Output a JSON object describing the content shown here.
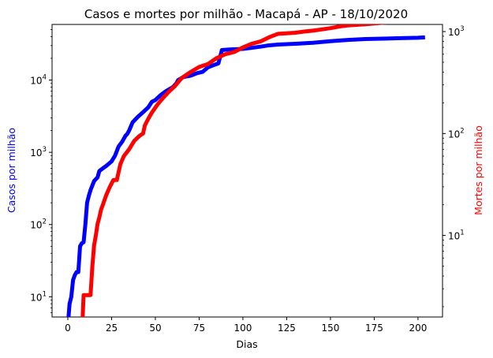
{
  "chart_data": {
    "type": "line",
    "title": "Casos e mortes por milhão - Macapá - AP - 18/10/2020",
    "xlabel": "Dias",
    "ylabel_left": "Casos por milhão",
    "ylabel_right": "Mortes por milhão",
    "xlim": [
      -9,
      214
    ],
    "ylim_left_log10": [
      0.72,
      4.77
    ],
    "ylim_right_log10": [
      0.2,
      3.07
    ],
    "x_ticks": [
      0,
      25,
      50,
      75,
      100,
      125,
      150,
      175,
      200
    ],
    "x_tick_labels": [
      "0",
      "25",
      "50",
      "75",
      "100",
      "125",
      "150",
      "175",
      "200"
    ],
    "y_left_scale": "log",
    "y_right_scale": "log",
    "y_left_ticks": [
      {
        "value": 10,
        "base": "10",
        "exp": "1"
      },
      {
        "value": 100,
        "base": "10",
        "exp": "2"
      },
      {
        "value": 1000,
        "base": "10",
        "exp": "3"
      },
      {
        "value": 10000,
        "base": "10",
        "exp": "4"
      }
    ],
    "y_right_ticks": [
      {
        "value": 10,
        "base": "10",
        "exp": "1"
      },
      {
        "value": 100,
        "base": "10",
        "exp": "2"
      },
      {
        "value": 1000,
        "base": "10",
        "exp": "3"
      }
    ],
    "grid": false,
    "series": [
      {
        "name": "Casos por milhão",
        "axis": "left",
        "color": "#0000ff",
        "points": [
          [
            0,
            4
          ],
          [
            1,
            8
          ],
          [
            2,
            10
          ],
          [
            3,
            17
          ],
          [
            4,
            20
          ],
          [
            5,
            22
          ],
          [
            6,
            22
          ],
          [
            7,
            50
          ],
          [
            8,
            55
          ],
          [
            9,
            57
          ],
          [
            10,
            100
          ],
          [
            11,
            200
          ],
          [
            12,
            250
          ],
          [
            13,
            300
          ],
          [
            15,
            400
          ],
          [
            17,
            450
          ],
          [
            18,
            550
          ],
          [
            20,
            600
          ],
          [
            22,
            650
          ],
          [
            25,
            750
          ],
          [
            27,
            900
          ],
          [
            29,
            1200
          ],
          [
            31,
            1400
          ],
          [
            33,
            1700
          ],
          [
            34,
            1800
          ],
          [
            35,
            2000
          ],
          [
            37,
            2600
          ],
          [
            40,
            3100
          ],
          [
            43,
            3600
          ],
          [
            46,
            4200
          ],
          [
            48,
            5000
          ],
          [
            50,
            5300
          ],
          [
            53,
            6200
          ],
          [
            56,
            7000
          ],
          [
            60,
            8000
          ],
          [
            62,
            9000
          ],
          [
            63,
            10000
          ],
          [
            66,
            11000
          ],
          [
            70,
            11500
          ],
          [
            74,
            12500
          ],
          [
            77,
            13000
          ],
          [
            80,
            15000
          ],
          [
            83,
            16000
          ],
          [
            86,
            17000
          ],
          [
            88,
            26000
          ],
          [
            92,
            26500
          ],
          [
            100,
            27000
          ],
          [
            105,
            28000
          ],
          [
            110,
            29000
          ],
          [
            114,
            30000
          ],
          [
            120,
            31000
          ],
          [
            130,
            31800
          ],
          [
            140,
            32800
          ],
          [
            150,
            34500
          ],
          [
            160,
            36000
          ],
          [
            170,
            37000
          ],
          [
            180,
            37500
          ],
          [
            190,
            38000
          ],
          [
            200,
            38500
          ],
          [
            204,
            39000
          ]
        ]
      },
      {
        "name": "Mortes por milhão",
        "axis": "right",
        "color": "#ff0000",
        "points": [
          [
            8,
            1
          ],
          [
            9,
            2.6
          ],
          [
            10,
            2.6
          ],
          [
            12,
            2.6
          ],
          [
            13,
            2.6
          ],
          [
            14,
            5
          ],
          [
            15,
            8
          ],
          [
            16,
            10
          ],
          [
            17,
            13
          ],
          [
            18,
            15
          ],
          [
            19,
            18
          ],
          [
            20,
            20
          ],
          [
            22,
            25
          ],
          [
            24,
            30
          ],
          [
            26,
            35
          ],
          [
            28,
            35
          ],
          [
            30,
            50
          ],
          [
            32,
            60
          ],
          [
            35,
            70
          ],
          [
            38,
            85
          ],
          [
            41,
            95
          ],
          [
            43,
            100
          ],
          [
            44,
            120
          ],
          [
            46,
            140
          ],
          [
            48,
            160
          ],
          [
            50,
            180
          ],
          [
            52,
            200
          ],
          [
            55,
            230
          ],
          [
            58,
            260
          ],
          [
            61,
            290
          ],
          [
            65,
            350
          ],
          [
            70,
            400
          ],
          [
            75,
            450
          ],
          [
            80,
            480
          ],
          [
            85,
            550
          ],
          [
            90,
            600
          ],
          [
            95,
            630
          ],
          [
            100,
            700
          ],
          [
            105,
            760
          ],
          [
            110,
            800
          ],
          [
            115,
            880
          ],
          [
            120,
            950
          ],
          [
            125,
            960
          ],
          [
            130,
            975
          ],
          [
            135,
            1000
          ],
          [
            140,
            1020
          ],
          [
            145,
            1050
          ],
          [
            150,
            1080
          ],
          [
            155,
            1120
          ],
          [
            160,
            1150
          ],
          [
            170,
            1180
          ],
          [
            180,
            1220
          ],
          [
            190,
            1260
          ],
          [
            200,
            1290
          ],
          [
            204,
            1310
          ]
        ]
      }
    ]
  }
}
